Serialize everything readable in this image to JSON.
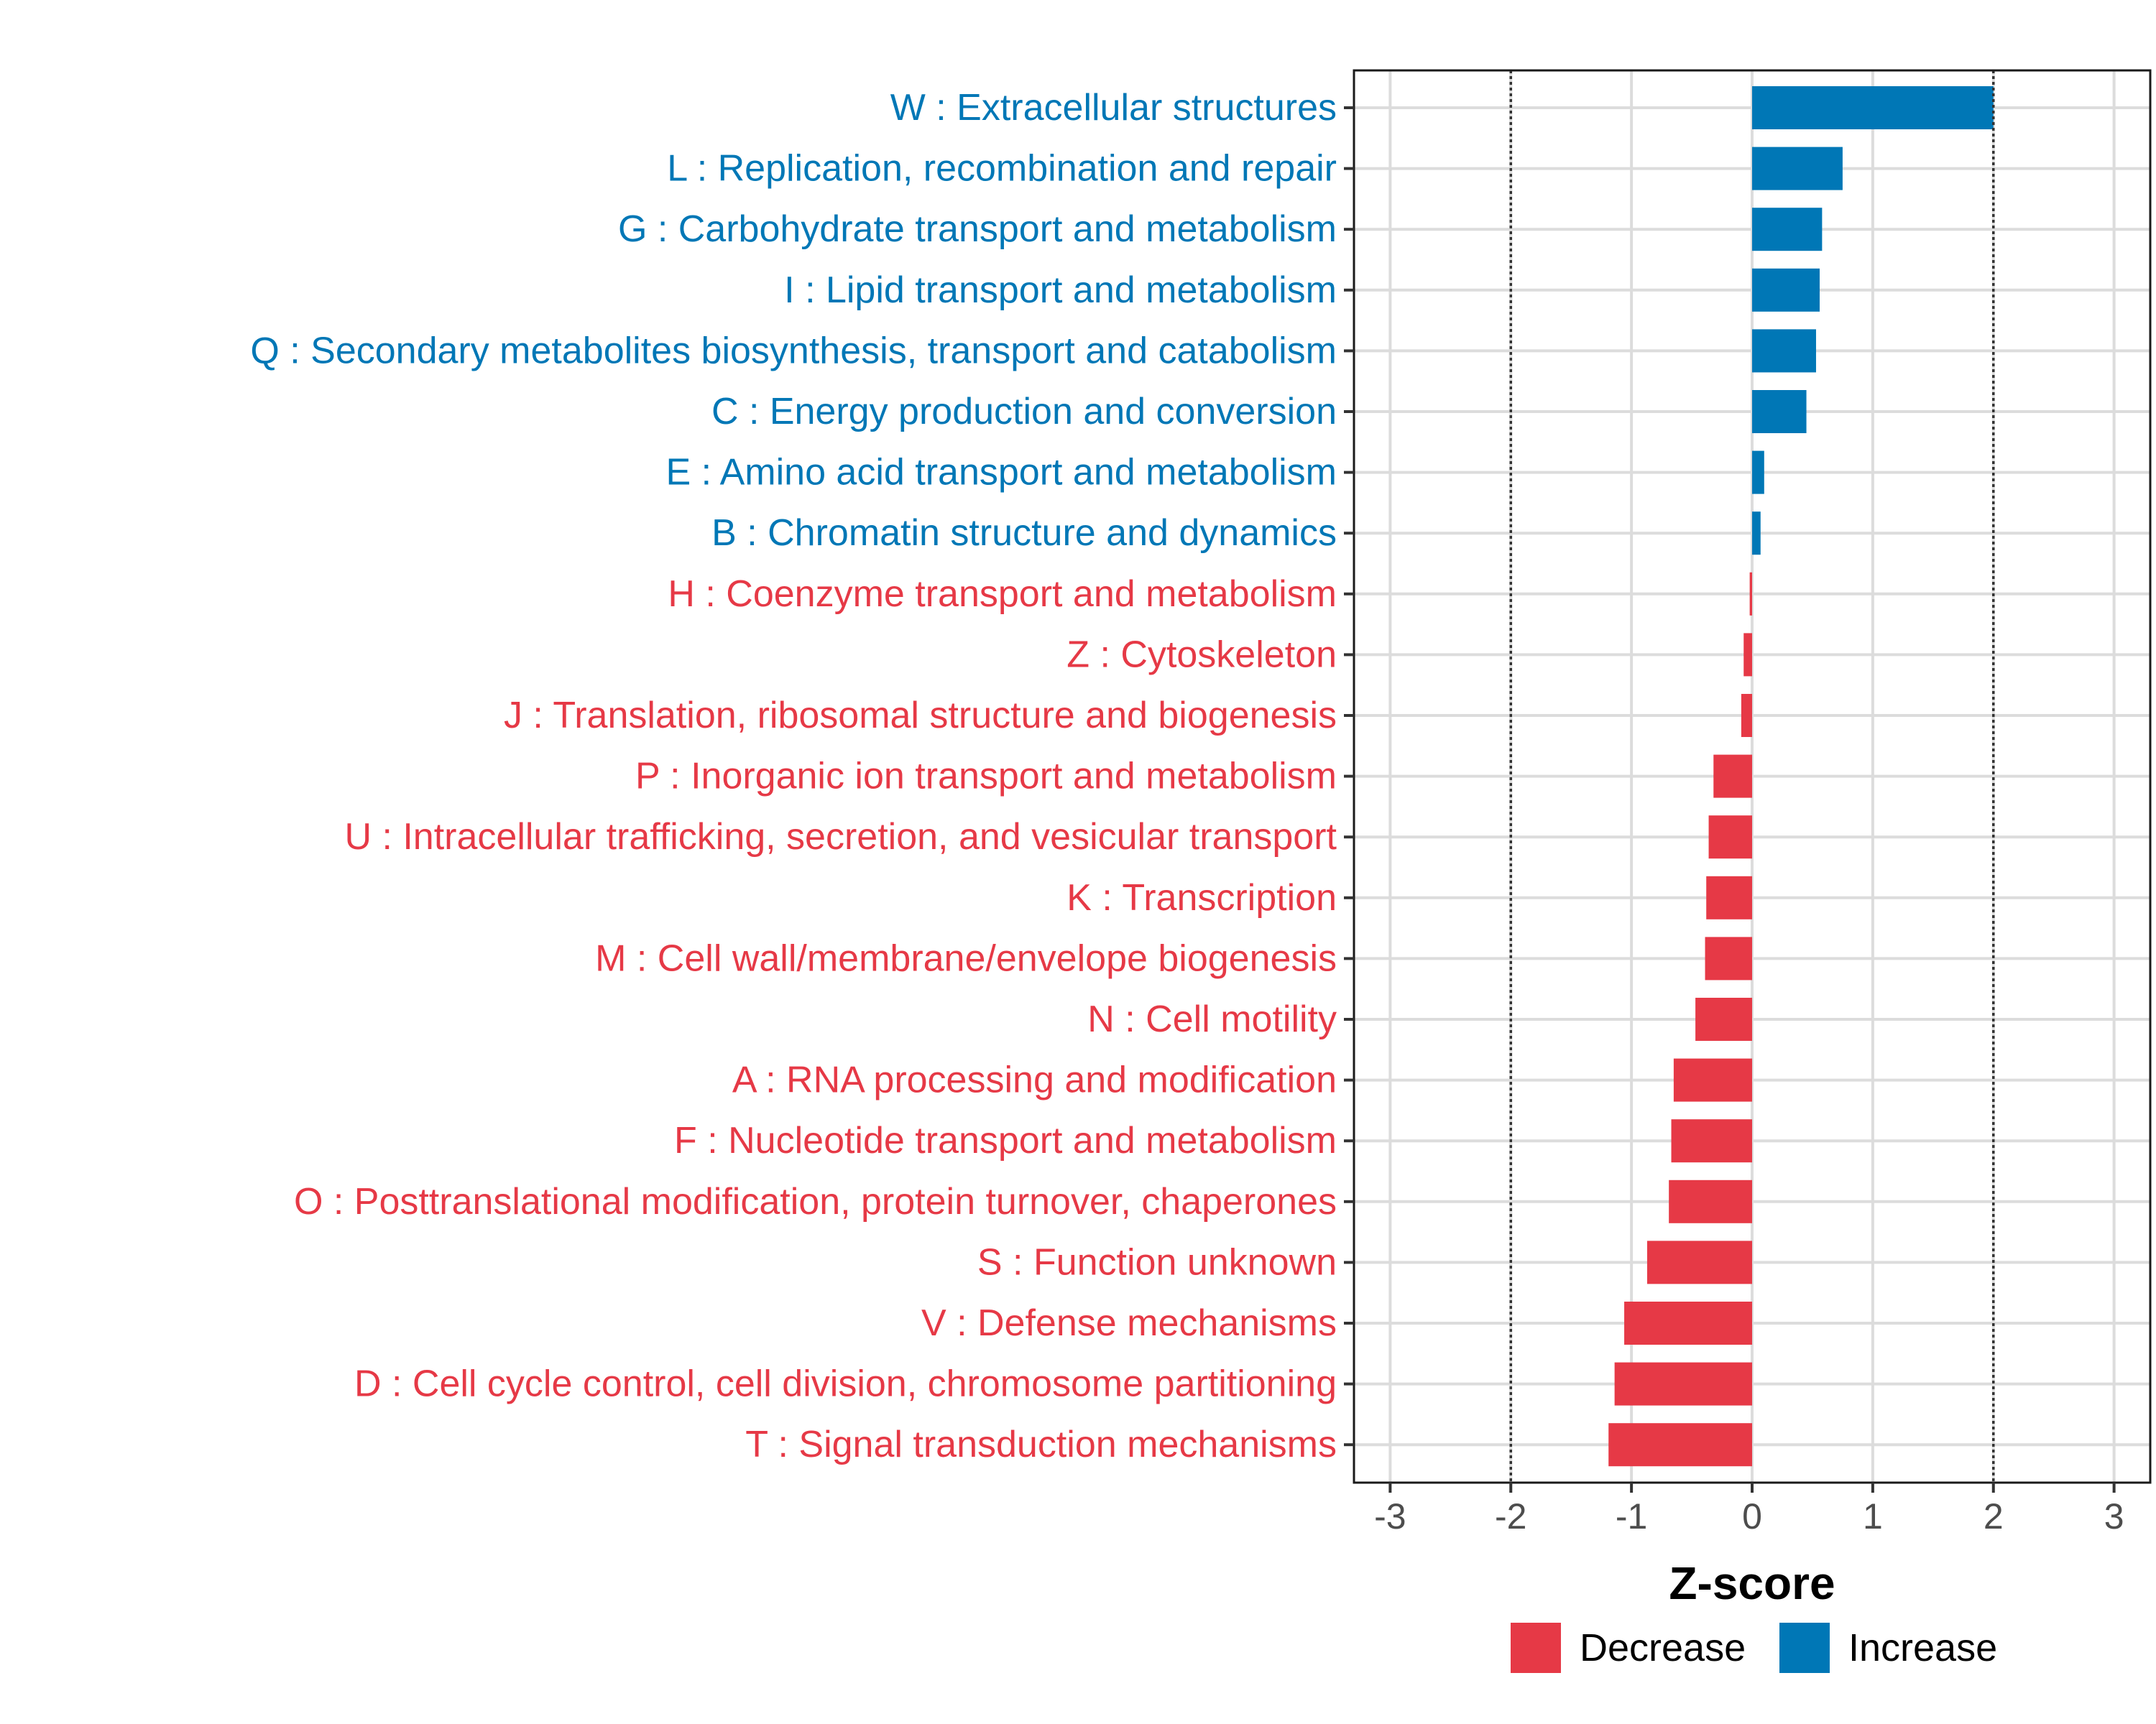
{
  "chart_data": {
    "type": "bar",
    "orientation": "horizontal",
    "title": "",
    "xlabel": "Z-score",
    "ylabel": "",
    "xlim": [
      -3.3,
      3.3
    ],
    "x_ticks": [
      -3,
      -2,
      -1,
      0,
      1,
      2,
      3
    ],
    "x_tick_labels": [
      "-3",
      "-2",
      "-1",
      "0",
      "1",
      "2",
      "3"
    ],
    "reference_lines": [
      -2,
      2
    ],
    "grid": true,
    "legend_position": "bottom",
    "colors": {
      "Decrease": "#e63946",
      "Increase": "#0077b6"
    },
    "legend": [
      {
        "name": "Decrease",
        "color": "#e63946"
      },
      {
        "name": "Increase",
        "color": "#0077b6"
      }
    ],
    "categories": [
      "W : Extracellular structures",
      "L : Replication, recombination and repair",
      "G : Carbohydrate transport and metabolism",
      "I : Lipid transport and metabolism",
      "Q : Secondary metabolites biosynthesis, transport and catabolism",
      "C : Energy production and conversion",
      "E : Amino acid transport and metabolism",
      "B : Chromatin structure and dynamics",
      "H : Coenzyme transport and metabolism",
      "Z : Cytoskeleton",
      "J : Translation, ribosomal structure and biogenesis",
      "P : Inorganic ion transport and metabolism",
      "U : Intracellular trafficking, secretion, and vesicular transport",
      "K : Transcription",
      "M : Cell wall/membrane/envelope biogenesis",
      "N : Cell motility",
      "A : RNA processing and modification",
      "F : Nucleotide transport and metabolism",
      "O : Posttranslational modification, protein turnover, chaperones",
      "S : Function unknown",
      "V : Defense mechanisms",
      "D : Cell cycle control, cell division, chromosome partitioning",
      "T : Signal transduction mechanisms"
    ],
    "values": [
      2.0,
      0.75,
      0.58,
      0.56,
      0.53,
      0.45,
      0.1,
      0.07,
      -0.02,
      -0.07,
      -0.09,
      -0.32,
      -0.36,
      -0.38,
      -0.39,
      -0.47,
      -0.65,
      -0.67,
      -0.69,
      -0.87,
      -1.06,
      -1.14,
      -1.19
    ],
    "groups": [
      "Increase",
      "Increase",
      "Increase",
      "Increase",
      "Increase",
      "Increase",
      "Increase",
      "Increase",
      "Decrease",
      "Decrease",
      "Decrease",
      "Decrease",
      "Decrease",
      "Decrease",
      "Decrease",
      "Decrease",
      "Decrease",
      "Decrease",
      "Decrease",
      "Decrease",
      "Decrease",
      "Decrease",
      "Decrease"
    ]
  }
}
